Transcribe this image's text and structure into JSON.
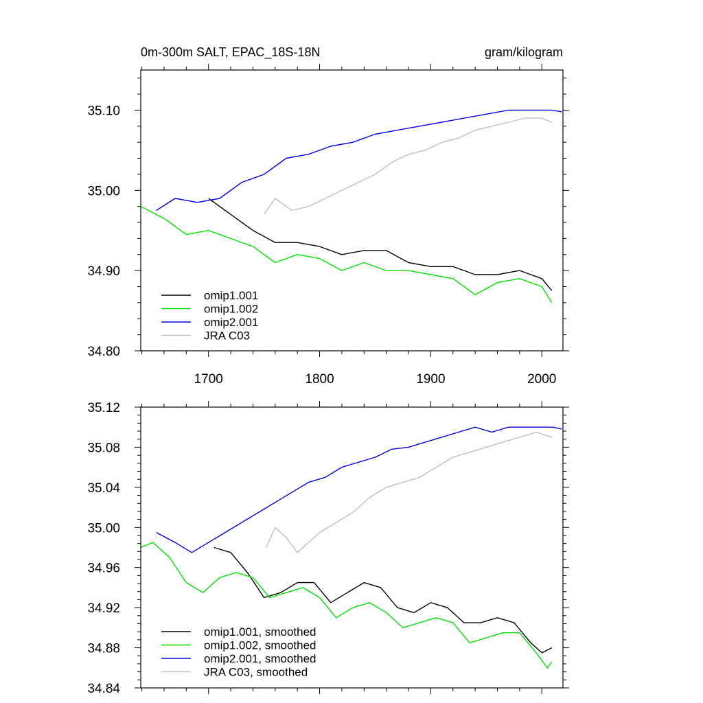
{
  "chart_data": [
    {
      "type": "line",
      "title": "0m-300m SALT, EPAC_18S-18N",
      "units": "gram/kilogram",
      "xlim": [
        1639,
        2019
      ],
      "ylim": [
        34.8,
        35.15
      ],
      "xticks": [
        1700,
        1800,
        1900,
        2000
      ],
      "yticks": [
        34.8,
        34.9,
        35.0,
        35.1
      ],
      "ytick_labels": [
        "34.80",
        "34.90",
        "35.00",
        "35.10"
      ],
      "legend_position": "bottom-left",
      "series": [
        {
          "name": "omip1.001",
          "color": "#000000",
          "x": [
            1700,
            1720,
            1740,
            1760,
            1780,
            1800,
            1820,
            1840,
            1860,
            1880,
            1900,
            1920,
            1940,
            1960,
            1980,
            2000,
            2009
          ],
          "y": [
            34.99,
            34.97,
            34.95,
            34.935,
            34.935,
            34.93,
            34.92,
            34.925,
            34.925,
            34.91,
            34.905,
            34.905,
            34.895,
            34.895,
            34.9,
            34.89,
            34.875
          ]
        },
        {
          "name": "omip1.002",
          "color": "#00e000",
          "x": [
            1639,
            1660,
            1680,
            1700,
            1720,
            1740,
            1760,
            1780,
            1800,
            1820,
            1840,
            1860,
            1880,
            1900,
            1920,
            1940,
            1960,
            1980,
            2000,
            2009
          ],
          "y": [
            34.98,
            34.965,
            34.945,
            34.95,
            34.94,
            34.93,
            34.91,
            34.92,
            34.915,
            34.9,
            34.91,
            34.9,
            34.9,
            34.895,
            34.89,
            34.87,
            34.885,
            34.89,
            34.88,
            34.86
          ]
        },
        {
          "name": "omip2.001",
          "color": "#0000e0",
          "x": [
            1653,
            1670,
            1690,
            1710,
            1730,
            1750,
            1770,
            1790,
            1810,
            1830,
            1850,
            1870,
            1890,
            1910,
            1930,
            1950,
            1970,
            1990,
            2009,
            2018
          ],
          "y": [
            34.975,
            34.99,
            34.985,
            34.99,
            35.01,
            35.02,
            35.04,
            35.045,
            35.055,
            35.06,
            35.07,
            35.075,
            35.08,
            35.085,
            35.09,
            35.095,
            35.1,
            35.1,
            35.1,
            35.098
          ]
        },
        {
          "name": "JRA C03",
          "color": "#c0c0c0",
          "x": [
            1750,
            1760,
            1775,
            1790,
            1805,
            1820,
            1835,
            1850,
            1865,
            1880,
            1895,
            1910,
            1925,
            1940,
            1955,
            1970,
            1985,
            2000,
            2009
          ],
          "y": [
            34.97,
            34.99,
            34.975,
            34.98,
            34.99,
            35.0,
            35.01,
            35.02,
            35.035,
            35.045,
            35.05,
            35.06,
            35.065,
            35.075,
            35.08,
            35.085,
            35.09,
            35.09,
            35.085
          ]
        }
      ]
    },
    {
      "type": "line",
      "xlim": [
        1639,
        2019
      ],
      "ylim": [
        34.84,
        35.12
      ],
      "xticks": [
        1700,
        1800,
        1900,
        2000
      ],
      "yticks": [
        34.84,
        34.88,
        34.92,
        34.96,
        35.0,
        35.04,
        35.08,
        35.12
      ],
      "ytick_labels": [
        "34.84",
        "34.88",
        "34.92",
        "34.96",
        "35.00",
        "35.04",
        "35.08",
        "35.12"
      ],
      "legend_position": "bottom-left",
      "series": [
        {
          "name": "omip1.001, smoothed",
          "color": "#000000",
          "x": [
            1705,
            1720,
            1735,
            1750,
            1765,
            1780,
            1795,
            1810,
            1825,
            1840,
            1855,
            1870,
            1885,
            1900,
            1915,
            1930,
            1945,
            1960,
            1975,
            1990,
            2000,
            2009
          ],
          "y": [
            34.98,
            34.975,
            34.955,
            34.93,
            34.935,
            34.945,
            34.945,
            34.925,
            34.935,
            34.945,
            34.94,
            34.92,
            34.915,
            34.925,
            34.92,
            34.905,
            34.905,
            34.91,
            34.905,
            34.885,
            34.875,
            34.88
          ]
        },
        {
          "name": "omip1.002, smoothed",
          "color": "#00e000",
          "x": [
            1639,
            1650,
            1665,
            1680,
            1695,
            1710,
            1725,
            1740,
            1755,
            1770,
            1785,
            1800,
            1815,
            1830,
            1845,
            1860,
            1875,
            1890,
            1905,
            1920,
            1935,
            1950,
            1965,
            1980,
            1995,
            2005,
            2009
          ],
          "y": [
            34.98,
            34.985,
            34.97,
            34.945,
            34.935,
            34.95,
            34.955,
            34.95,
            34.93,
            34.935,
            34.94,
            34.93,
            34.91,
            34.92,
            34.925,
            34.915,
            34.9,
            34.905,
            34.91,
            34.905,
            34.885,
            34.89,
            34.895,
            34.895,
            34.875,
            34.86,
            34.866
          ]
        },
        {
          "name": "omip2.001, smoothed",
          "color": "#0000e0",
          "x": [
            1653,
            1670,
            1685,
            1700,
            1715,
            1730,
            1745,
            1760,
            1775,
            1790,
            1805,
            1820,
            1835,
            1850,
            1865,
            1880,
            1895,
            1910,
            1925,
            1940,
            1955,
            1970,
            1985,
            2000,
            2010,
            2018
          ],
          "y": [
            34.995,
            34.985,
            34.975,
            34.985,
            34.995,
            35.005,
            35.015,
            35.025,
            35.035,
            35.045,
            35.05,
            35.06,
            35.065,
            35.07,
            35.078,
            35.08,
            35.085,
            35.09,
            35.095,
            35.1,
            35.095,
            35.1,
            35.1,
            35.1,
            35.1,
            35.098
          ]
        },
        {
          "name": "JRA C03, smoothed",
          "color": "#c0c0c0",
          "x": [
            1752,
            1760,
            1770,
            1780,
            1790,
            1800,
            1815,
            1830,
            1845,
            1860,
            1875,
            1890,
            1905,
            1920,
            1935,
            1950,
            1965,
            1980,
            1995,
            2009
          ],
          "y": [
            34.98,
            35.0,
            34.99,
            34.975,
            34.985,
            34.995,
            35.005,
            35.015,
            35.03,
            35.04,
            35.045,
            35.05,
            35.06,
            35.07,
            35.075,
            35.08,
            35.085,
            35.09,
            35.095,
            35.09
          ]
        }
      ]
    }
  ]
}
